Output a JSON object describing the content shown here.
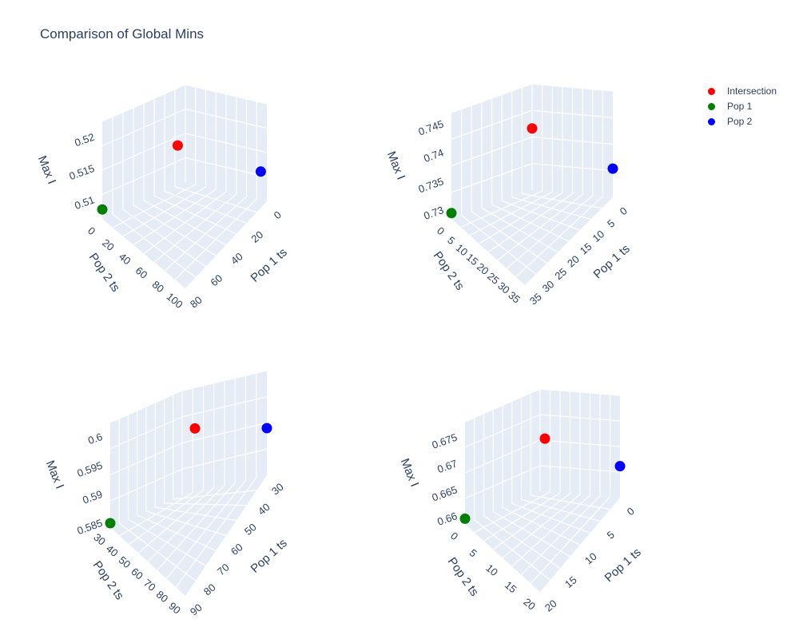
{
  "title": "Comparison of Global Mins",
  "legend": [
    {
      "label": "Intersection",
      "color": "#ff0000"
    },
    {
      "label": "Pop 1",
      "color": "#008000"
    },
    {
      "label": "Pop 2",
      "color": "#0000ff"
    }
  ],
  "chart_data": [
    {
      "type": "scatter3d",
      "xlabel": "Pop 1 ts",
      "ylabel": "Pop 2 ts",
      "zlabel": "Max I",
      "x_ticks": [
        "0",
        "20",
        "40",
        "60",
        "80"
      ],
      "y_ticks": [
        "0",
        "20",
        "40",
        "60",
        "80",
        "100"
      ],
      "z_ticks": [
        "0.51",
        "0.515",
        "0.52"
      ],
      "points": [
        {
          "series": "Intersection",
          "x": 100,
          "y": 100,
          "z": 0.5215
        },
        {
          "series": "Pop 1",
          "x": 100,
          "y": 0,
          "z": 0.5085
        },
        {
          "series": "Pop 2",
          "x": 0,
          "y": 100,
          "z": 0.5115
        }
      ]
    },
    {
      "type": "scatter3d",
      "xlabel": "Pop 1 ts",
      "ylabel": "Pop 2 ts",
      "zlabel": "Max I",
      "x_ticks": [
        "0",
        "5",
        "10",
        "15",
        "20",
        "25",
        "30",
        "35"
      ],
      "y_ticks": [
        "0",
        "5",
        "10",
        "15",
        "20",
        "25",
        "30",
        "35"
      ],
      "z_ticks": [
        "0.73",
        "0.735",
        "0.74",
        "0.745"
      ],
      "points": [
        {
          "series": "Intersection",
          "x": 38,
          "y": 38,
          "z": 0.7455
        },
        {
          "series": "Pop 1",
          "x": 38,
          "y": 0,
          "z": 0.7295
        },
        {
          "series": "Pop 2",
          "x": 0,
          "y": 38,
          "z": 0.7335
        }
      ]
    },
    {
      "type": "scatter3d",
      "xlabel": "Pop 1 ts",
      "ylabel": "Pop 2 ts",
      "zlabel": "Max I",
      "x_ticks": [
        "30",
        "40",
        "50",
        "60",
        "70",
        "80",
        "90"
      ],
      "y_ticks": [
        "30",
        "40",
        "50",
        "60",
        "70",
        "80",
        "90"
      ],
      "z_ticks": [
        "0.585",
        "0.59",
        "0.595",
        "0.6"
      ],
      "points": [
        {
          "series": "Intersection",
          "x": 95,
          "y": 95,
          "z": 0.598
        },
        {
          "series": "Pop 1",
          "x": 95,
          "y": 25,
          "z": 0.585
        },
        {
          "series": "Pop 2",
          "x": 25,
          "y": 95,
          "z": 0.5925
        }
      ]
    },
    {
      "type": "scatter3d",
      "xlabel": "Pop 1 ts",
      "ylabel": "Pop 2 ts",
      "zlabel": "Max I",
      "x_ticks": [
        "0",
        "5",
        "10",
        "15",
        "20"
      ],
      "y_ticks": [
        "0",
        "5",
        "10",
        "15",
        "20"
      ],
      "z_ticks": [
        "0.66",
        "0.665",
        "0.67",
        "0.675"
      ],
      "points": [
        {
          "series": "Intersection",
          "x": 23,
          "y": 23,
          "z": 0.676
        },
        {
          "series": "Pop 1",
          "x": 23,
          "y": 0,
          "z": 0.6595
        },
        {
          "series": "Pop 2",
          "x": 0,
          "y": 23,
          "z": 0.6645
        }
      ]
    }
  ]
}
